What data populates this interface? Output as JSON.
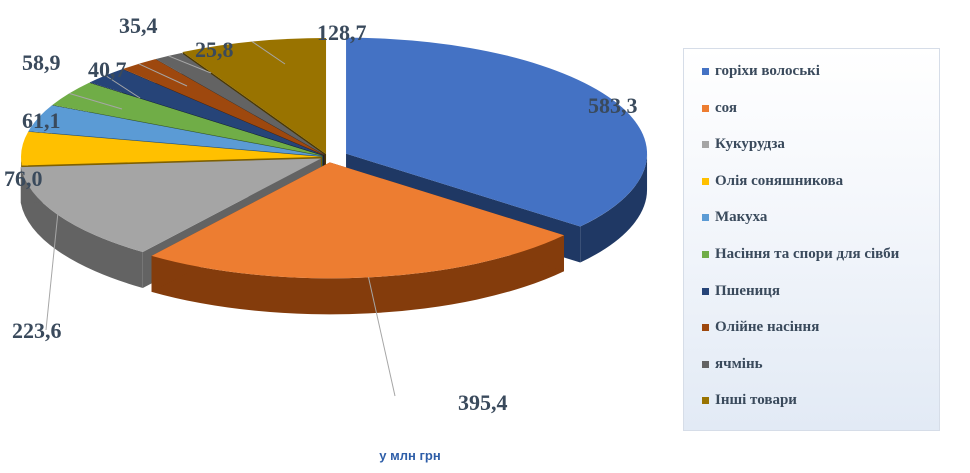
{
  "chart_data": {
    "type": "pie",
    "series": [
      {
        "name": "горіхи волоські",
        "label": "583,3",
        "value": 583.3,
        "color": "#4472c4",
        "side": "#1f3864"
      },
      {
        "name": "соя",
        "label": "395,4",
        "value": 395.4,
        "color": "#ed7d31",
        "side": "#843c0c"
      },
      {
        "name": "Кукурудза",
        "label": "223,6",
        "value": 223.6,
        "color": "#a5a5a5",
        "side": "#636363"
      },
      {
        "name": "Олія соняшникова",
        "label": "76,0",
        "value": 76.0,
        "color": "#ffc000",
        "side": "#7f6000"
      },
      {
        "name": "Макуха",
        "label": "61,1",
        "value": 61.1,
        "color": "#5b9bd5",
        "side": "#1f4e79"
      },
      {
        "name": "Насіння та спори для сівби",
        "label": "58,9",
        "value": 58.9,
        "color": "#70ad47",
        "side": "#375623"
      },
      {
        "name": "Пшениця",
        "label": "40,7",
        "value": 40.7,
        "color": "#264478",
        "side": "#111e36"
      },
      {
        "name": "Олійне насіння",
        "label": "35,4",
        "value": 35.4,
        "color": "#9e480e",
        "side": "#4f2407"
      },
      {
        "name": "ячмінь",
        "label": "25,8",
        "value": 25.8,
        "color": "#636363",
        "side": "#2f2f2f"
      },
      {
        "name": "Інші товари",
        "label": "128,7",
        "value": 128.7,
        "color": "#997300",
        "side": "#4c3900"
      }
    ],
    "legend_position": "right",
    "unit_caption": "у млн грн"
  }
}
